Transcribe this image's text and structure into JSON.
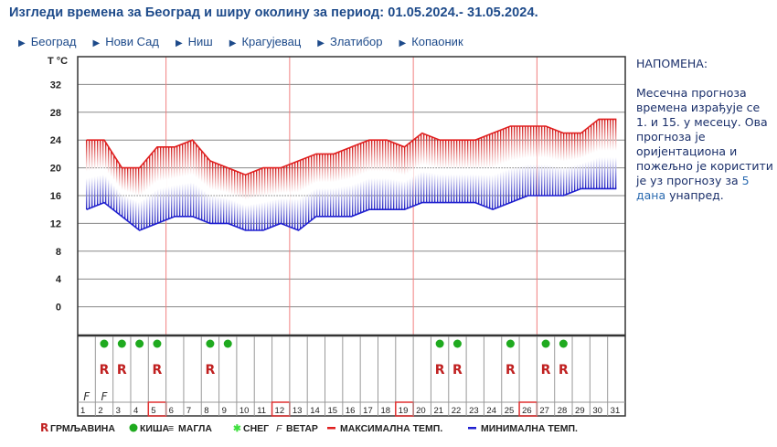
{
  "title": "Изгледи времена за Београд и ширу околину за период: 01.05.2024.- 31.05.2024.",
  "nav": [
    "Београд",
    "Нови Сад",
    "Ниш",
    "Крагујевац",
    "Златибор",
    "Копаоник"
  ],
  "note": {
    "heading": "НАПОМЕНА:",
    "text1": "Месечна прогноза времена израђује се 1. и 15. у месецу. Ова прогноза је оријентациона и пожељно је користити је уз прогнозу за ",
    "link": "5 дана",
    "text2": " унапред."
  },
  "chart_data": {
    "type": "area",
    "ylabel": "T °C",
    "ylim": [
      -4,
      36
    ],
    "yticks": [
      0,
      4,
      8,
      12,
      16,
      20,
      24,
      28,
      32
    ],
    "x": [
      1,
      2,
      3,
      4,
      5,
      6,
      7,
      8,
      9,
      10,
      11,
      12,
      13,
      14,
      15,
      16,
      17,
      18,
      19,
      20,
      21,
      22,
      23,
      24,
      25,
      26,
      27,
      28,
      29,
      30,
      31
    ],
    "series": [
      {
        "name": "МАКСИМАЛНА ТЕМП.",
        "color": "#e02020",
        "values": [
          24,
          24,
          20,
          20,
          23,
          23,
          24,
          21,
          20,
          19,
          20,
          20,
          21,
          22,
          22,
          23,
          24,
          24,
          23,
          25,
          24,
          24,
          24,
          25,
          26,
          26,
          26,
          25,
          25,
          27,
          27
        ]
      },
      {
        "name": "МИНИМАЛНА ТЕМП.",
        "color": "#2020d0",
        "values": [
          14,
          15,
          13,
          11,
          12,
          13,
          13,
          12,
          12,
          11,
          11,
          12,
          11,
          13,
          13,
          13,
          14,
          14,
          14,
          15,
          15,
          15,
          15,
          14,
          15,
          16,
          16,
          16,
          17,
          17,
          17
        ]
      }
    ],
    "highlighted_days": [
      5,
      12,
      19,
      26
    ],
    "weather": {
      "rain": [
        2,
        3,
        4,
        5,
        8,
        9,
        21,
        22,
        25,
        27,
        28
      ],
      "thunderstorm": [
        2,
        3,
        5,
        8,
        21,
        22,
        25,
        27,
        28
      ],
      "wind": [
        1,
        2
      ],
      "fog": [],
      "snow": []
    },
    "legend": [
      "ГРМЉАВИНА",
      "КИША",
      "МАГЛА",
      "СНЕГ",
      "ВЕТАР",
      "МАКСИМАЛНА ТЕМП.",
      "МИНИМАЛНА ТЕМП."
    ]
  }
}
